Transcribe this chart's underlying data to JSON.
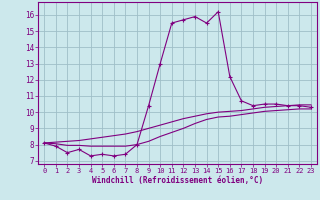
{
  "title": "",
  "xlabel": "Windchill (Refroidissement éolien,°C)",
  "ylabel": "",
  "bg_color": "#cce8ec",
  "line_color": "#800080",
  "grid_color": "#9fbfc8",
  "x_ticks": [
    0,
    1,
    2,
    3,
    4,
    5,
    6,
    7,
    8,
    9,
    10,
    11,
    12,
    13,
    14,
    15,
    16,
    17,
    18,
    19,
    20,
    21,
    22,
    23
  ],
  "y_ticks": [
    7,
    8,
    9,
    10,
    11,
    12,
    13,
    14,
    15,
    16
  ],
  "ylim": [
    6.8,
    16.8
  ],
  "xlim": [
    -0.5,
    23.5
  ],
  "series1_x": [
    0,
    1,
    2,
    3,
    4,
    5,
    6,
    7,
    8,
    9,
    10,
    11,
    12,
    13,
    14,
    15,
    16,
    17,
    18,
    19,
    20,
    21,
    22,
    23
  ],
  "series1_y": [
    8.1,
    7.9,
    7.5,
    7.7,
    7.3,
    7.4,
    7.3,
    7.4,
    8.0,
    10.4,
    13.0,
    15.5,
    15.7,
    15.9,
    15.5,
    16.2,
    12.2,
    10.7,
    10.4,
    10.5,
    10.5,
    10.4,
    10.4,
    10.3
  ],
  "series2_x": [
    0,
    1,
    2,
    3,
    4,
    5,
    6,
    7,
    8,
    9,
    10,
    11,
    12,
    13,
    14,
    15,
    16,
    17,
    18,
    19,
    20,
    21,
    22,
    23
  ],
  "series2_y": [
    8.1,
    8.15,
    8.2,
    8.25,
    8.35,
    8.45,
    8.55,
    8.65,
    8.8,
    9.0,
    9.2,
    9.4,
    9.6,
    9.75,
    9.9,
    10.0,
    10.05,
    10.1,
    10.2,
    10.3,
    10.35,
    10.4,
    10.45,
    10.45
  ],
  "series3_x": [
    0,
    1,
    2,
    3,
    4,
    5,
    6,
    7,
    8,
    9,
    10,
    11,
    12,
    13,
    14,
    15,
    16,
    17,
    18,
    19,
    20,
    21,
    22,
    23
  ],
  "series3_y": [
    8.1,
    8.05,
    7.95,
    7.95,
    7.9,
    7.9,
    7.9,
    7.9,
    8.0,
    8.2,
    8.5,
    8.75,
    9.0,
    9.3,
    9.55,
    9.7,
    9.75,
    9.85,
    9.95,
    10.05,
    10.1,
    10.15,
    10.2,
    10.2
  ]
}
